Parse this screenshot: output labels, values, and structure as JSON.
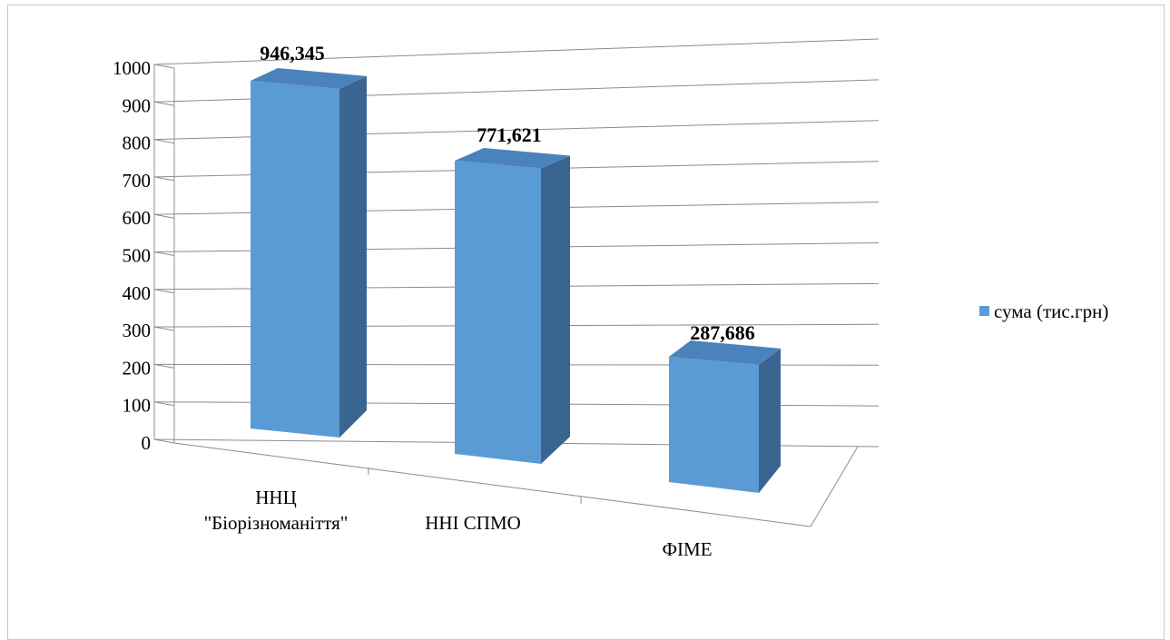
{
  "chart_data": {
    "type": "bar",
    "categories": [
      "ННЦ\n\"Біорізноманіття\"",
      "ННІ СПМО",
      "ФІМЕ"
    ],
    "series": [
      {
        "name": "сума (тис.грн)",
        "values": [
          946.345,
          771.621,
          287.686
        ]
      }
    ],
    "data_labels": [
      "946,345",
      "771,621",
      "287,686"
    ],
    "y_ticks": [
      "0",
      "100",
      "200",
      "300",
      "400",
      "500",
      "600",
      "700",
      "800",
      "900",
      "1000"
    ],
    "ylim": [
      0,
      1000
    ],
    "grid": true,
    "legend_position": "right",
    "style": "3d-column",
    "colors": {
      "front": "#5b9bd5",
      "side": "#3a6591",
      "top": "#4a83bb",
      "grid": "#8c8c8c"
    }
  }
}
